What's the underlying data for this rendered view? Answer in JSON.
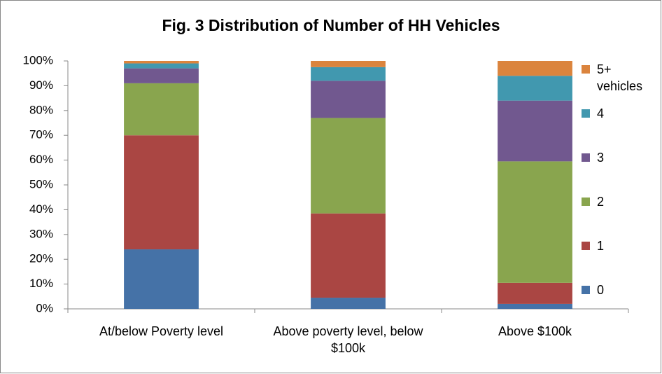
{
  "chart_data": {
    "type": "stacked_bar",
    "title": "Fig. 3 Distribution of Number of HH Vehicles",
    "categories": [
      "At/below Poverty level",
      "Above poverty level, below $100k",
      "Above $100k"
    ],
    "series": [
      {
        "name": "0",
        "color": "#4572a7",
        "values": [
          24,
          4.5,
          2
        ]
      },
      {
        "name": "1",
        "color": "#aa4643",
        "values": [
          46,
          34,
          8.5
        ]
      },
      {
        "name": "2",
        "color": "#89a54e",
        "values": [
          21,
          38.5,
          49
        ]
      },
      {
        "name": "3",
        "color": "#71588f",
        "values": [
          6,
          15,
          24.5
        ]
      },
      {
        "name": "4",
        "color": "#4198af",
        "values": [
          2,
          5.5,
          10
        ]
      },
      {
        "name": "5+ vehicles",
        "color": "#db843d",
        "values": [
          1,
          2.5,
          6
        ]
      }
    ],
    "ylim": [
      0,
      100
    ],
    "yticks": [
      {
        "value": 0,
        "label": "0%"
      },
      {
        "value": 10,
        "label": "10%"
      },
      {
        "value": 20,
        "label": "20%"
      },
      {
        "value": 30,
        "label": "30%"
      },
      {
        "value": 40,
        "label": "40%"
      },
      {
        "value": 50,
        "label": "50%"
      },
      {
        "value": 60,
        "label": "60%"
      },
      {
        "value": 70,
        "label": "70%"
      },
      {
        "value": 80,
        "label": "80%"
      },
      {
        "value": 90,
        "label": "90%"
      },
      {
        "value": 100,
        "label": "100%"
      }
    ],
    "legend": "right"
  }
}
